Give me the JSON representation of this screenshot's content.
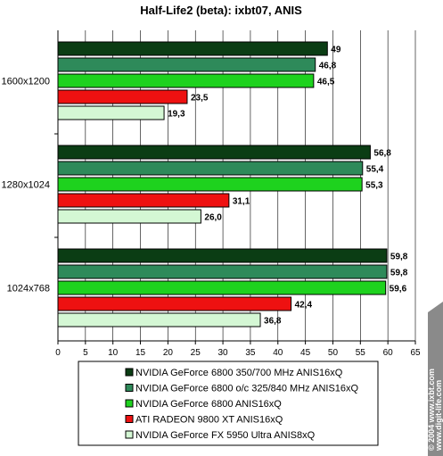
{
  "chart_data": {
    "type": "bar",
    "orientation": "horizontal",
    "title": "Half-Life2 (beta): ixbt07, ANIS",
    "categories": [
      "1600x1200",
      "1280x1024",
      "1024x768"
    ],
    "xlim": [
      0,
      65
    ],
    "xticks": [
      "0",
      "5",
      "10",
      "15",
      "20",
      "25",
      "30",
      "35",
      "40",
      "45",
      "50",
      "55",
      "60",
      "65"
    ],
    "grid": true,
    "legend_position": "bottom",
    "series": [
      {
        "name": "NVIDIA GeForce 6800 350/700 MHz ANIS16xQ",
        "color": "#0b3d14",
        "values": [
          49,
          56.8,
          59.8
        ],
        "labels": [
          "49",
          "56,8",
          "59,8"
        ]
      },
      {
        "name": "NVIDIA GeForce 6800 o/c 325/840 MHz ANIS16xQ",
        "color": "#2e8a5a",
        "values": [
          46.8,
          55.4,
          59.8
        ],
        "labels": [
          "46,8",
          "55,4",
          "59,8"
        ]
      },
      {
        "name": "NVIDIA GeForce 6800 ANIS16xQ",
        "color": "#1ed21e",
        "values": [
          46.5,
          55.3,
          59.6
        ],
        "labels": [
          "46,5",
          "55,3",
          "59,6"
        ]
      },
      {
        "name": "ATI RADEON 9800 XT ANIS16xQ",
        "color": "#ee1111",
        "values": [
          23.5,
          31.1,
          42.4
        ],
        "labels": [
          "23,5",
          "31,1",
          "42,4"
        ]
      },
      {
        "name": "NVIDIA GeForce FX 5950 Ultra ANIS8xQ",
        "color": "#d4f7d4",
        "values": [
          19.3,
          26.0,
          36.8
        ],
        "labels": [
          "19,3",
          "26,0",
          "36,8"
        ]
      }
    ]
  },
  "watermark": {
    "line1": "© 2004 www.ixbt.com",
    "line2": "www.digit-life.com"
  }
}
